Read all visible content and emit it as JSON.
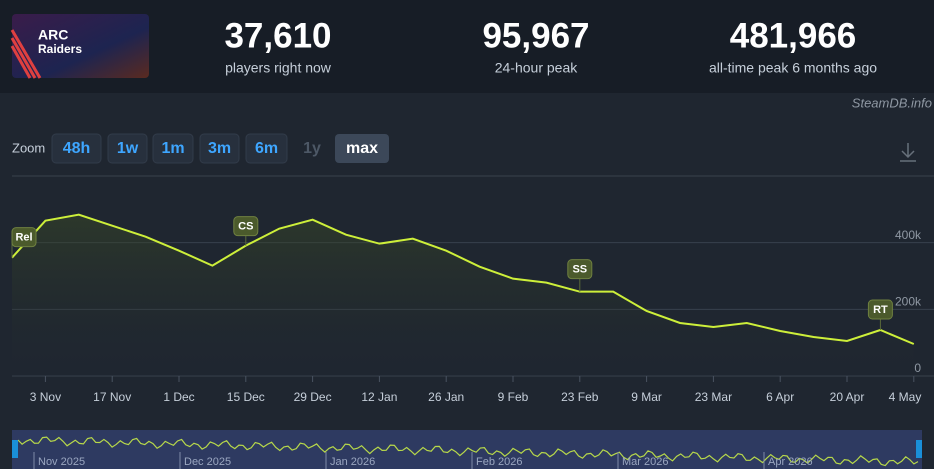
{
  "header": {
    "logo": [
      "ARC",
      "Raiders"
    ],
    "stats": [
      {
        "value": "37,610",
        "label": "players right now"
      },
      {
        "value": "95,967",
        "label": "24-hour peak"
      },
      {
        "value": "481,966",
        "label": "all-time peak 6 months ago"
      }
    ],
    "credit": "SteamDB.info"
  },
  "zoom": {
    "label": "Zoom",
    "options": [
      "48h",
      "1w",
      "1m",
      "3m",
      "6m",
      "1y",
      "max"
    ]
  },
  "chart_data": {
    "type": "line",
    "categories": [
      null,
      "3 Nov",
      null,
      "17 Nov",
      null,
      "1 Dec",
      null,
      "15 Dec",
      null,
      "29 Dec",
      null,
      "12 Jan",
      null,
      "26 Jan",
      null,
      "9 Feb",
      null,
      "23 Feb",
      null,
      "9 Mar",
      null,
      "23 Mar",
      null,
      "6 Apr",
      null,
      "20 Apr",
      null,
      "4 May"
    ],
    "series": [
      {
        "color": "#cdef3a",
        "values": [
          355000,
          466000,
          484000,
          451000,
          418000,
          376000,
          331000,
          391000,
          442000,
          469000,
          424000,
          397000,
          412000,
          376000,
          328000,
          292000,
          280000,
          253000,
          253000,
          195000,
          159000,
          147000,
          159000,
          135000,
          117000,
          105000,
          138000,
          96000
        ]
      }
    ],
    "ylim": [
      0,
      600000
    ],
    "yticks": [
      {
        "value": 0,
        "label": "0"
      },
      {
        "value": 200000,
        "label": "200k"
      },
      {
        "value": 400000,
        "label": "400k"
      }
    ],
    "grid": true,
    "annotations": [
      "Rel",
      "CS",
      "SS",
      "RT"
    ],
    "navigator": [
      "Nov 2025",
      "Dec 2025",
      "Jan 2026",
      "Feb 2026",
      "Mar 2026",
      "Apr 2026"
    ]
  }
}
